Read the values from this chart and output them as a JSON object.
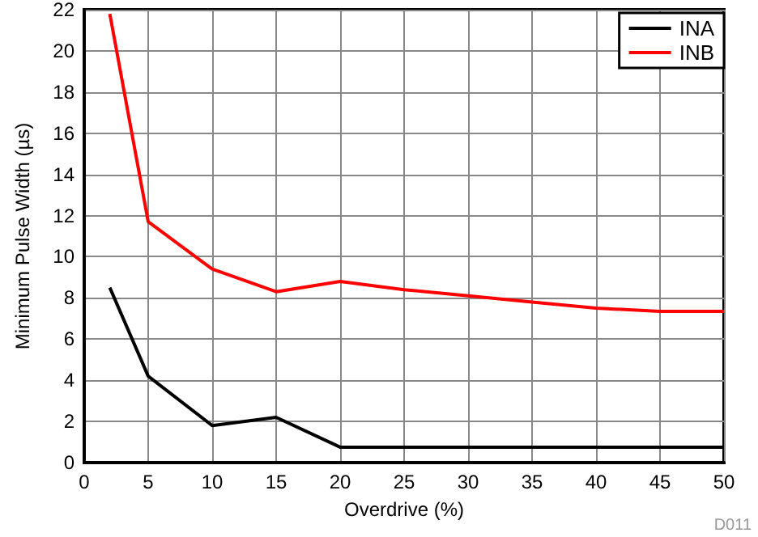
{
  "chart_data": {
    "type": "line",
    "xlabel": "Overdrive (%)",
    "ylabel": "Minimum Pulse Width (µs)",
    "annotations": [
      "D011"
    ],
    "xlim": [
      0,
      50
    ],
    "xticks": [
      0,
      5,
      10,
      15,
      20,
      25,
      30,
      35,
      40,
      45,
      50
    ],
    "ylim": [
      0,
      22
    ],
    "yticks": [
      0,
      2,
      4,
      6,
      8,
      10,
      12,
      14,
      16,
      18,
      20,
      22
    ],
    "grid": true,
    "legend": "top right",
    "marker": "none",
    "line_style": "solid",
    "series": [
      {
        "name": "INA",
        "color": "#000000",
        "x": [
          2,
          5,
          10,
          15,
          20,
          25,
          30,
          35,
          40,
          45,
          50
        ],
        "values": [
          8.5,
          4.2,
          1.8,
          2.2,
          0.75,
          0.75,
          0.75,
          0.75,
          0.75,
          0.75,
          0.75
        ]
      },
      {
        "name": "INB",
        "color": "#ff0000",
        "x": [
          2,
          5,
          10,
          15,
          20,
          25,
          30,
          35,
          40,
          45,
          50
        ],
        "values": [
          21.8,
          11.7,
          9.4,
          8.3,
          8.8,
          8.4,
          8.1,
          7.8,
          7.5,
          7.35,
          7.35
        ]
      }
    ]
  }
}
